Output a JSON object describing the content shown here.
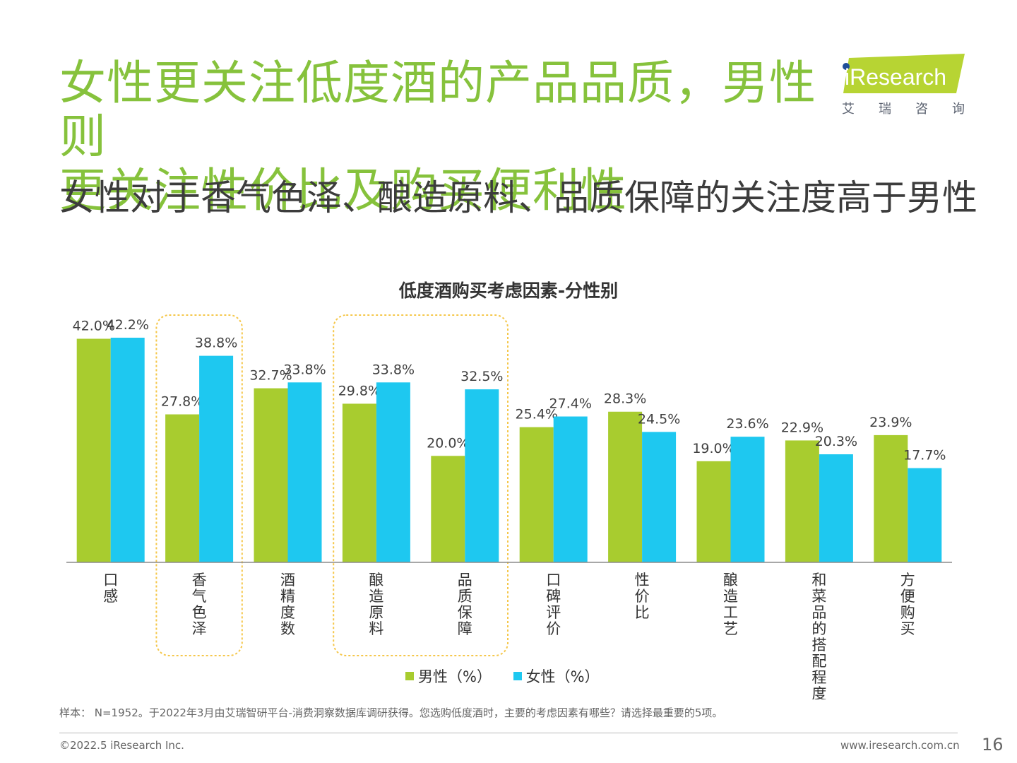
{
  "header": {
    "title_line1": "女性更关注低度酒的产品品质，男性则",
    "title_line2": "更关注性价比及购买便利性",
    "subtitle": "女性对于香气色泽、酿造原料、品质保障的关注度高于男性"
  },
  "logo": {
    "wordmark": "iResearch",
    "cn": "艾瑞咨询"
  },
  "colors": {
    "male": "#a8cc2f",
    "female": "#1ec8f0",
    "title_green": "#86c23c",
    "highlight_border": "#f5c74a"
  },
  "chart_data": {
    "type": "bar",
    "title": "低度酒购买考虑因素-分性别",
    "categories": [
      "口感",
      "香气、色泽",
      "酒精度数",
      "酿造原料",
      "品质保障",
      "口碑、评价",
      "性价比",
      "酿造工艺",
      "和菜品的搭配程度",
      "方便购买"
    ],
    "series": [
      {
        "name": "男性（%）",
        "values": [
          42.0,
          27.8,
          32.7,
          29.8,
          20.0,
          25.4,
          28.3,
          19.0,
          22.9,
          23.9
        ]
      },
      {
        "name": "女性（%）",
        "values": [
          42.2,
          38.8,
          33.8,
          33.8,
          32.5,
          27.4,
          24.5,
          23.6,
          20.3,
          17.7
        ]
      }
    ],
    "value_format": "percent_1dp",
    "ylim": [
      0,
      42.2
    ],
    "highlighted_categories": [
      "香气、色泽",
      "酿造原料",
      "品质保障"
    ],
    "legend_position": "bottom",
    "grid": false
  },
  "footer": {
    "note": "样本： N=1952。于2022年3月由艾瑞智研平台-消费洞察数据库调研获得。您选购低度酒时，主要的考虑因素有哪些？请选择最重要的5项。",
    "copyright": "©2022.5 iResearch Inc.",
    "url": "www.iresearch.com.cn",
    "page": "16"
  }
}
